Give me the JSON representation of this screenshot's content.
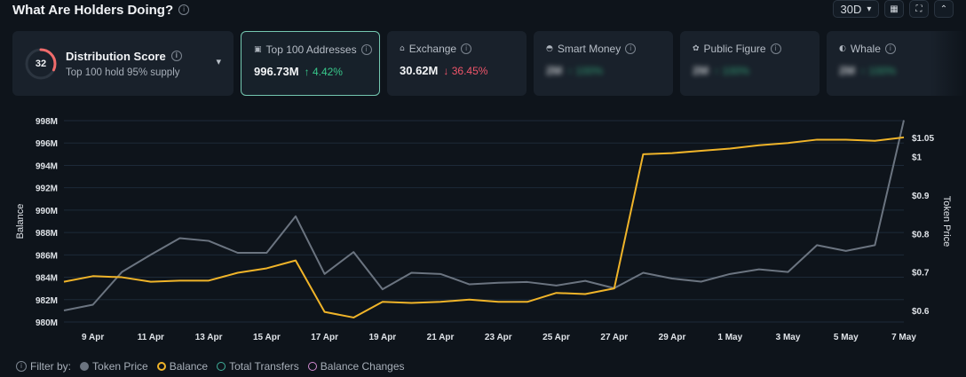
{
  "header": {
    "title": "What Are Holders Doing?",
    "info_icon": "info-icon"
  },
  "controls": {
    "range": "30D",
    "range_caret": "▾",
    "calendar_icon": "▦",
    "expand_icon": "⛶",
    "collapse_icon": "⌃"
  },
  "distribution": {
    "score": "32",
    "score_fraction": 0.32,
    "title": "Distribution Score",
    "subtitle": "Top 100 hold 95% supply",
    "ring_color": "#f06b6b"
  },
  "metrics": [
    {
      "label": "Top 100 Addresses",
      "icon": "▣",
      "value": "996.73M",
      "arrow": "↑",
      "change": "4.42%",
      "direction": "up",
      "active": true
    },
    {
      "label": "Exchange",
      "icon": "⌂",
      "value": "30.62M",
      "arrow": "↓",
      "change": "36.45%",
      "direction": "down"
    },
    {
      "label": "Smart Money",
      "icon": "◓",
      "value": "2M",
      "arrow": "↑",
      "change": "100%",
      "direction": "up",
      "blurred": true
    },
    {
      "label": "Public Figure",
      "icon": "✿",
      "value": "2M",
      "arrow": "↑",
      "change": "100%",
      "direction": "up",
      "blurred": true
    },
    {
      "label": "Whale",
      "icon": "◐",
      "value": "2M",
      "arrow": "↑",
      "change": "100%",
      "direction": "up",
      "blurred": true
    }
  ],
  "legend": {
    "filter_label": "Filter by:",
    "items": [
      "Token Price",
      "Balance",
      "Total Transfers",
      "Balance Changes"
    ]
  },
  "colors": {
    "balance": "#f0b429",
    "price": "#6b7480",
    "grid": "#1d2a38",
    "up": "#38c78a",
    "down": "#f0556a"
  },
  "chart_data": {
    "type": "line",
    "x": [
      "8 Apr",
      "9 Apr",
      "10 Apr",
      "11 Apr",
      "12 Apr",
      "13 Apr",
      "14 Apr",
      "15 Apr",
      "16 Apr",
      "17 Apr",
      "18 Apr",
      "19 Apr",
      "20 Apr",
      "21 Apr",
      "22 Apr",
      "23 Apr",
      "24 Apr",
      "25 Apr",
      "26 Apr",
      "27 Apr",
      "28 Apr",
      "29 Apr",
      "30 Apr",
      "1 May",
      "2 May",
      "3 May",
      "4 May",
      "5 May",
      "6 May",
      "7 May"
    ],
    "x_tick_labels": [
      "9 Apr",
      "11 Apr",
      "13 Apr",
      "15 Apr",
      "17 Apr",
      "19 Apr",
      "21 Apr",
      "23 Apr",
      "25 Apr",
      "27 Apr",
      "29 Apr",
      "1 May",
      "3 May",
      "5 May",
      "7 May"
    ],
    "ylabel": "Balance",
    "y2label": "Token Price",
    "y_ticks": [
      "980M",
      "982M",
      "984M",
      "986M",
      "988M",
      "990M",
      "992M",
      "994M",
      "996M",
      "998M"
    ],
    "y2_ticks": [
      "$0.6",
      "$0.7",
      "$0.8",
      "$0.9",
      "$1",
      "$1.05"
    ],
    "ylim": [
      980,
      998
    ],
    "y2lim": [
      0.6,
      1.05
    ],
    "series": [
      {
        "name": "Balance",
        "axis": "left",
        "values": [
          983.6,
          984.1,
          984.0,
          983.6,
          983.7,
          983.7,
          984.4,
          984.8,
          985.5,
          980.9,
          980.4,
          981.8,
          981.7,
          981.8,
          982.0,
          981.8,
          981.8,
          982.6,
          982.5,
          983.0,
          995.0,
          995.1,
          995.3,
          995.5,
          995.8,
          996.0,
          996.3,
          996.3,
          996.2,
          996.5
        ]
      },
      {
        "name": "Token Price",
        "axis": "right",
        "values": [
          0.6,
          0.615,
          0.7,
          0.745,
          0.788,
          0.781,
          0.75,
          0.75,
          0.845,
          0.695,
          0.752,
          0.655,
          0.698,
          0.695,
          0.668,
          0.672,
          0.674,
          0.665,
          0.677,
          0.658,
          0.698,
          0.683,
          0.675,
          0.695,
          0.707,
          0.7,
          0.77,
          0.755,
          0.77,
          1.095
        ]
      }
    ]
  }
}
